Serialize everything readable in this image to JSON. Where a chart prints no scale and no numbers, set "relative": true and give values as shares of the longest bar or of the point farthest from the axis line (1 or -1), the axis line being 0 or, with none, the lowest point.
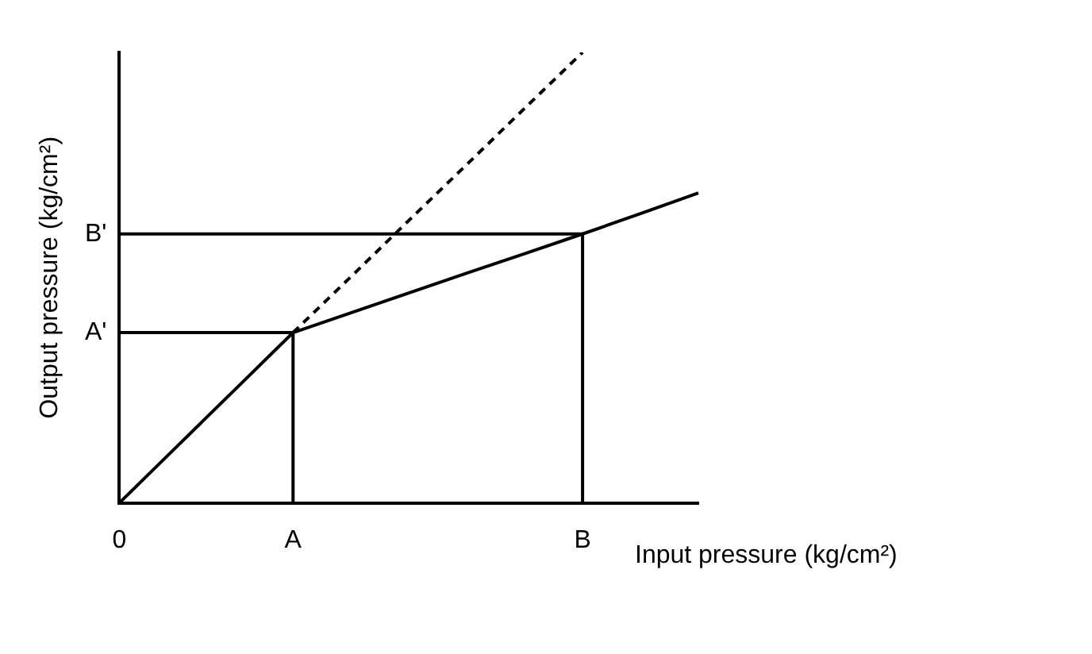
{
  "chart_data": {
    "type": "line",
    "relative": true,
    "xlabel": "Input pressure (kg/cm²)",
    "ylabel": "Output pressure (kg/cm²)",
    "categories": [
      "0",
      null,
      null,
      "A",
      null,
      null,
      null,
      null,
      "B",
      null,
      null
    ],
    "annotations": [
      {
        "text": "A'",
        "x": "0",
        "y": 0.378
      },
      {
        "text": "B'",
        "x": "0",
        "y": 0.597
      }
    ],
    "grid": false,
    "legend": false,
    "marker": "none",
    "series": [
      {
        "color": "#000000",
        "values": [
          0,
          0.126,
          0.252,
          0.378,
          0.422,
          0.466,
          0.51,
          0.553,
          0.597,
          0.642,
          0.688
        ],
        "line_style": "solid"
      },
      {
        "color": "#000000",
        "values": [
          null,
          null,
          null,
          0.378,
          0.502,
          0.627,
          0.751,
          0.876,
          1,
          null,
          null
        ],
        "line_style": "dashed"
      },
      {
        "color": "#000000",
        "x": [
          "0",
          "A",
          "A"
        ],
        "values": [
          0.378,
          0.378,
          0
        ],
        "line_style": "solid"
      },
      {
        "color": "#000000",
        "x": [
          "0",
          "B",
          "B"
        ],
        "values": [
          0.597,
          0.597,
          0
        ],
        "line_style": "solid"
      }
    ]
  }
}
